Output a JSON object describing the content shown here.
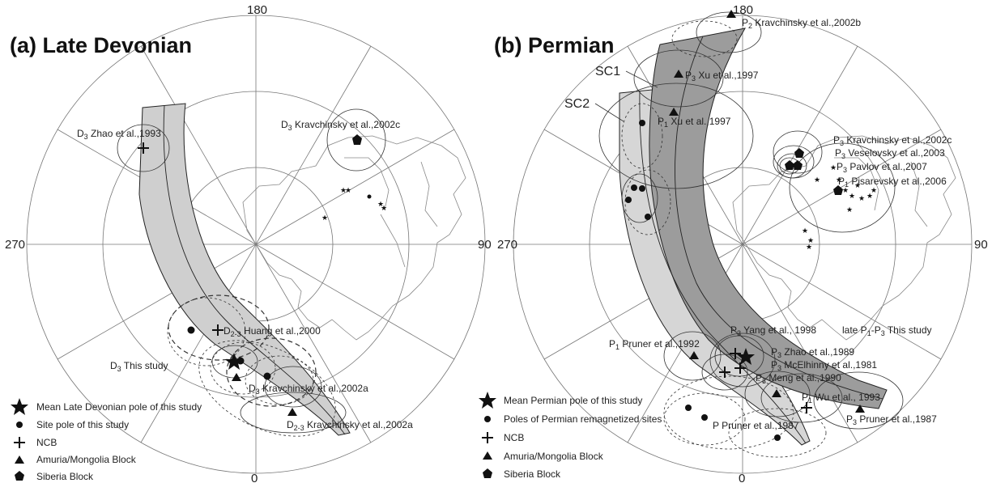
{
  "figure": {
    "left": {
      "title": "(a) Late Devonian",
      "degrees": {
        "top": "180",
        "left": "270",
        "right": "90",
        "bottom": "0"
      },
      "labels": [
        {
          "id": "zhao",
          "pre": "D",
          "sub": "3",
          "post": " Zhao et al.,1993"
        },
        {
          "id": "kr2002c",
          "pre": "D",
          "sub": "3",
          "post": " Kravchinsky et al.,2002c"
        },
        {
          "id": "huang",
          "pre": "D",
          "sub": "2-3",
          "post": " Huang et al.,2000"
        },
        {
          "id": "thisstudy",
          "pre": "D",
          "sub": "3",
          "post": " This study"
        },
        {
          "id": "kr2002a_d3",
          "pre": "D",
          "sub": "3",
          "post": " Kravchinsky et al.,2002a"
        },
        {
          "id": "kr2002a_d23",
          "pre": "D",
          "sub": "2-3",
          "post": " Kravchinsky et al.,2002a"
        }
      ],
      "legend": [
        {
          "symbol": "star",
          "text": "Mean Late Devonian pole of this study"
        },
        {
          "symbol": "circle",
          "text": "Site pole of this study"
        },
        {
          "symbol": "plus",
          "text": "NCB"
        },
        {
          "symbol": "triangle",
          "text": "Amuria/Mongolia Block"
        },
        {
          "symbol": "pentagon",
          "text": "Siberia Block"
        }
      ]
    },
    "right": {
      "title": "(b) Permian",
      "degrees": {
        "top": "180",
        "left": "270",
        "right": "90",
        "bottom": "0"
      },
      "curve_labels": [
        "SC1",
        "SC2"
      ],
      "labels": [
        {
          "id": "kr2002b",
          "pre": "P",
          "sub": "2",
          "post": " Kravchinsky et al.,2002b"
        },
        {
          "id": "xu_p3",
          "pre": "P",
          "sub": "3",
          "post": " Xu et al.,1997"
        },
        {
          "id": "xu_p1",
          "pre": "P",
          "sub": "1",
          "post": " Xu et al.,1997"
        },
        {
          "id": "kr2002c",
          "pre": "P",
          "sub": "3",
          "post": " Kravchinsky et al.,2002c"
        },
        {
          "id": "vesel",
          "pre": "P",
          "sub": "3",
          "post": " Veselovsky et al.,2003"
        },
        {
          "id": "pavlov",
          "pre": "P",
          "sub": "3",
          "post": " Pavlov et al.,2007"
        },
        {
          "id": "pisar",
          "pre": "P",
          "sub": "1",
          "post": " Pisarevsky et al.,2006"
        },
        {
          "id": "yang",
          "pre": "P",
          "sub": "3",
          "post": " Yang et al., 1998"
        },
        {
          "id": "late",
          "pre": "late P",
          "sub": "1",
          "post": "-P",
          "sub2": "3",
          "post2": " This study"
        },
        {
          "id": "pruner92",
          "pre": "P",
          "sub": "1",
          "post": " Pruner et al.,1992"
        },
        {
          "id": "zhao89",
          "pre": "P",
          "sub": "3",
          "post": " Zhao et al.,1989"
        },
        {
          "id": "mcel",
          "pre": "P",
          "sub": "3",
          "post": " McElhinny et al.,1981"
        },
        {
          "id": "meng",
          "pre": "P",
          "sub": "3",
          "post": " Meng et al.,1990"
        },
        {
          "id": "wu",
          "pre": "P",
          "sub": "1",
          "post": " Wu et al., 1993"
        },
        {
          "id": "pruner87a",
          "pre": "P Pruner et al.,1987",
          "sub": "",
          "post": ""
        },
        {
          "id": "pruner87b",
          "pre": "P",
          "sub": "3",
          "post": " Pruner et al.,1987"
        }
      ],
      "legend": [
        {
          "symbol": "star",
          "text": "Mean Permian pole of this study"
        },
        {
          "symbol": "circle",
          "text": "Poles of Permian remagnetized sites"
        },
        {
          "symbol": "plus",
          "text": "NCB"
        },
        {
          "symbol": "triangle",
          "text": "Amuria/Mongolia Block"
        },
        {
          "symbol": "pentagon",
          "text": "Siberia Block"
        }
      ]
    }
  },
  "colors": {
    "band_light": "#d4d4d4",
    "band_dark": "#9a9a9a",
    "ink": "#111111",
    "grid": "#666666"
  }
}
